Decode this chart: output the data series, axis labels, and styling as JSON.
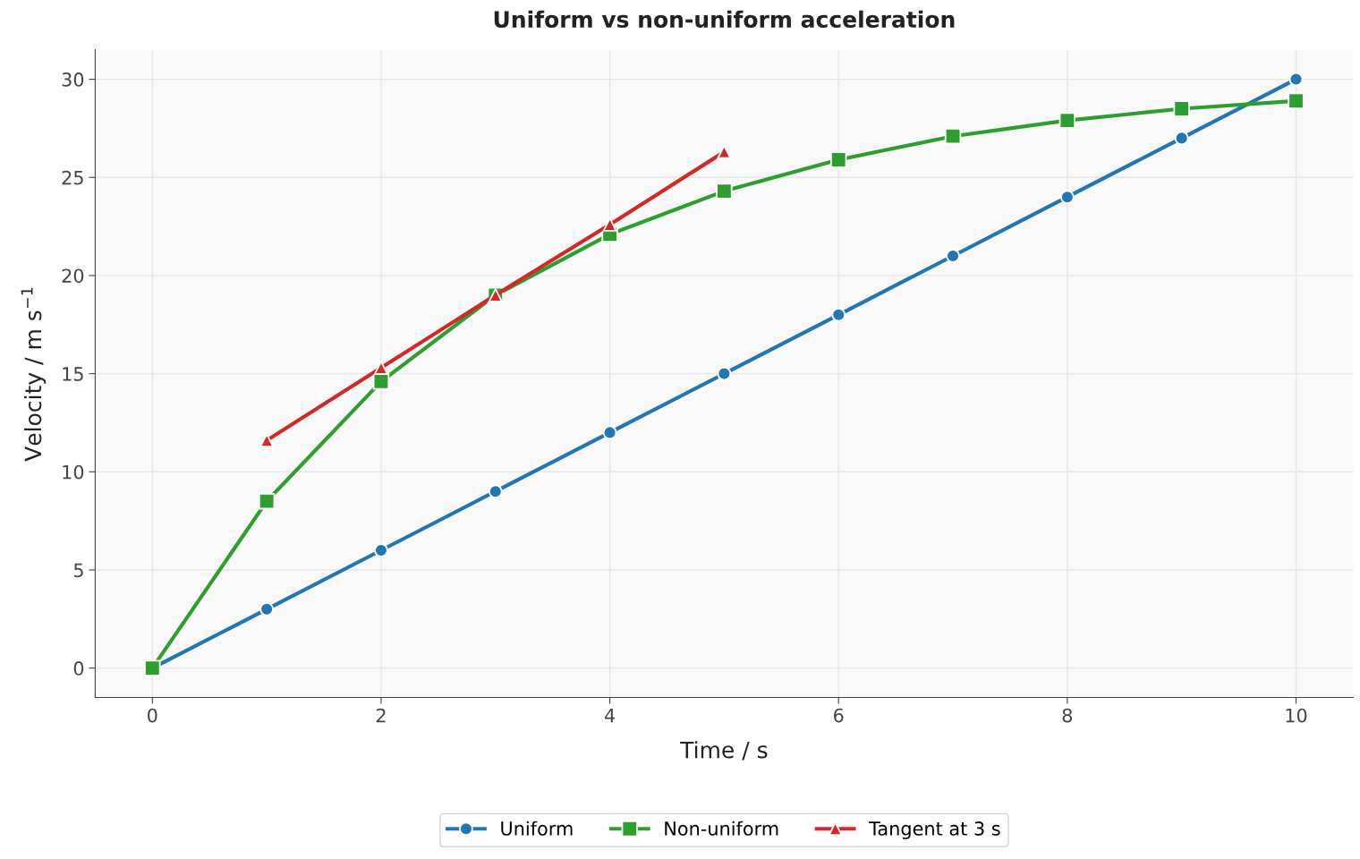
{
  "chart_data": {
    "type": "line",
    "title": "Uniform vs non-uniform acceleration",
    "xlabel": "Time / s",
    "ylabel": "Velocity / m s$^{−1}$",
    "xlim": [
      -0.5,
      10.5
    ],
    "xticks": [
      0,
      2,
      4,
      6,
      8,
      10
    ],
    "ylim": [
      -1.5,
      31.5
    ],
    "yticks": [
      0,
      5,
      10,
      15,
      20,
      25,
      30
    ],
    "grid": true,
    "legend": "bottom",
    "line_style": "solid",
    "series": [
      {
        "name": "Uniform",
        "color": "#1f77b4",
        "marker": "circle",
        "x": [
          0,
          1,
          2,
          3,
          4,
          5,
          6,
          7,
          8,
          9,
          10
        ],
        "values": [
          0,
          3,
          6,
          9,
          12,
          15,
          18,
          21,
          24,
          27,
          30
        ]
      },
      {
        "name": "Non-uniform",
        "color": "#2ca02c",
        "marker": "square",
        "x": [
          0,
          1,
          2,
          3,
          4,
          5,
          6,
          7,
          8,
          9,
          10
        ],
        "values": [
          0,
          8.5,
          14.6,
          19.0,
          22.1,
          24.3,
          25.9,
          27.1,
          27.9,
          28.5,
          28.9
        ]
      },
      {
        "name": "Tangent at 3 s",
        "color": "#d62728",
        "marker": "triangle",
        "x": [
          1,
          2,
          3,
          4,
          5
        ],
        "values": [
          11.6,
          15.3,
          19.0,
          22.6,
          26.3
        ]
      }
    ]
  }
}
